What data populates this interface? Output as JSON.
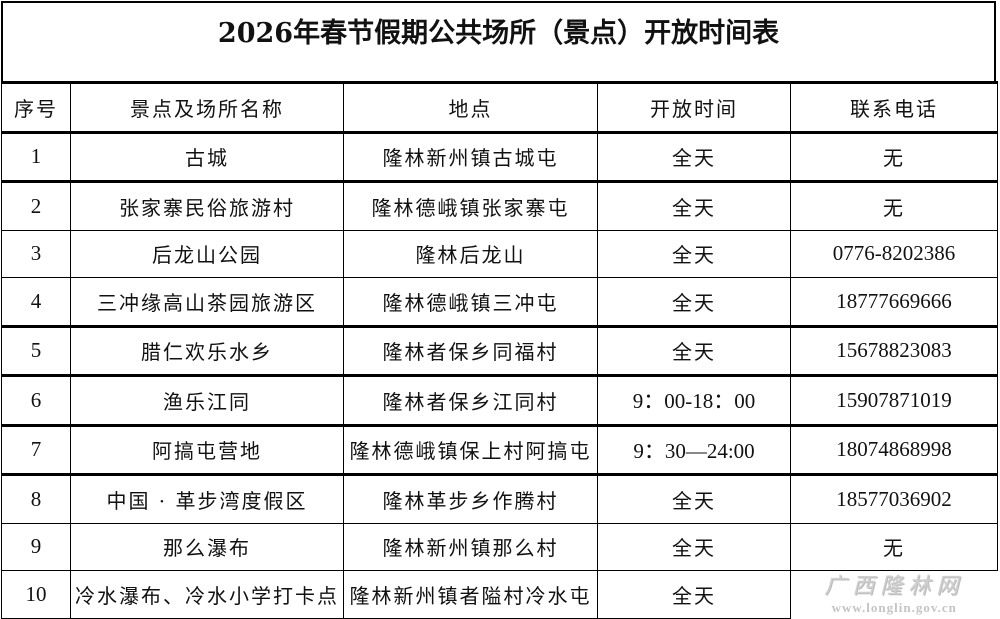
{
  "title": "2026年春节假期公共场所（景点）开放时间表",
  "headers": [
    "序号",
    "景点及场所名称",
    "地点",
    "开放时间",
    "联系电话"
  ],
  "rows": [
    [
      "1",
      "古城",
      "隆林新州镇古城屯",
      "全天",
      "无"
    ],
    [
      "2",
      "张家寨民俗旅游村",
      "隆林德峨镇张家寨屯",
      "全天",
      "无"
    ],
    [
      "3",
      "后龙山公园",
      "隆林后龙山",
      "全天",
      "0776-8202386"
    ],
    [
      "4",
      "三冲缘高山茶园旅游区",
      "隆林德峨镇三冲屯",
      "全天",
      "18777669666"
    ],
    [
      "5",
      "腊仁欢乐水乡",
      "隆林者保乡同福村",
      "全天",
      "15678823083"
    ],
    [
      "6",
      "渔乐江同",
      "隆林者保乡江同村",
      "9：00-18：00",
      "15907871019"
    ],
    [
      "7",
      "阿搞屯营地",
      "隆林德峨镇保上村阿搞屯",
      "9：30—24:00",
      "18074868998"
    ],
    [
      "8",
      "中国 · 革步湾度假区",
      "隆林革步乡作腾村",
      "全天",
      "18577036902"
    ],
    [
      "9",
      "那么瀑布",
      "隆林新州镇那么村",
      "全天",
      "无"
    ],
    [
      "10",
      "冷水瀑布、冷水小学打卡点",
      "隆林新州镇者隘村冷水屯",
      "全天",
      ""
    ]
  ],
  "watermark": {
    "name": "广西隆林网",
    "url": "www.longlin.gov.cn"
  }
}
